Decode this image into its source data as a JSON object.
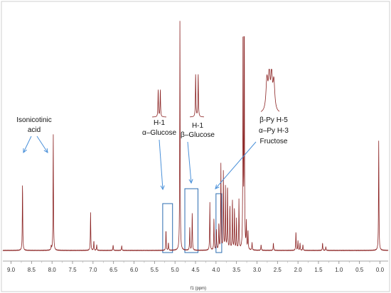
{
  "chart_data": {
    "type": "line",
    "title": "",
    "xlabel": "f1 (ppm)",
    "ylabel": "",
    "xlim": [
      9.2,
      -0.2
    ],
    "x_reversed": true,
    "grid": false,
    "x_ticks": [
      "9.0",
      "8.5",
      "8.0",
      "7.5",
      "7.0",
      "6.5",
      "6.0",
      "5.5",
      "5.0",
      "4.5",
      "4.0",
      "3.5",
      "3.0",
      "2.5",
      "2.0",
      "1.5",
      "1.0",
      "0.5",
      "0.0"
    ],
    "colors": {
      "spectrum": "#8b2323",
      "callout_arrow": "#4a90d9",
      "region_box": "#2b6cb0"
    },
    "peaks": [
      {
        "ppm": 8.72,
        "height": 0.36
      },
      {
        "ppm": 7.97,
        "height": 0.61
      },
      {
        "ppm": 8.02,
        "height": 0.02
      },
      {
        "ppm": 7.06,
        "height": 0.2
      },
      {
        "ppm": 6.98,
        "height": 0.05
      },
      {
        "ppm": 6.91,
        "height": 0.03
      },
      {
        "ppm": 6.51,
        "height": 0.03
      },
      {
        "ppm": 6.3,
        "height": 0.025
      },
      {
        "ppm": 5.22,
        "height": 0.11
      },
      {
        "ppm": 5.16,
        "height": 0.04
      },
      {
        "ppm": 4.88,
        "height": 1.2
      },
      {
        "ppm": 4.64,
        "height": 0.12
      },
      {
        "ppm": 4.58,
        "height": 0.2
      },
      {
        "ppm": 4.15,
        "height": 0.25
      },
      {
        "ppm": 4.05,
        "height": 0.17
      },
      {
        "ppm": 3.99,
        "height": 0.11
      },
      {
        "ppm": 3.93,
        "height": 0.14
      },
      {
        "ppm": 3.88,
        "height": 0.45
      },
      {
        "ppm": 3.82,
        "height": 0.41
      },
      {
        "ppm": 3.77,
        "height": 0.33
      },
      {
        "ppm": 3.72,
        "height": 0.35
      },
      {
        "ppm": 3.66,
        "height": 0.24
      },
      {
        "ppm": 3.6,
        "height": 0.27
      },
      {
        "ppm": 3.55,
        "height": 0.22
      },
      {
        "ppm": 3.5,
        "height": 0.16
      },
      {
        "ppm": 3.44,
        "height": 0.26
      },
      {
        "ppm": 3.34,
        "height": 1.2
      },
      {
        "ppm": 3.31,
        "height": 1.2
      },
      {
        "ppm": 3.26,
        "height": 0.14
      },
      {
        "ppm": 3.22,
        "height": 0.1
      },
      {
        "ppm": 3.12,
        "height": 0.04
      },
      {
        "ppm": 2.9,
        "height": 0.03
      },
      {
        "ppm": 2.6,
        "height": 0.04
      },
      {
        "ppm": 2.05,
        "height": 0.1
      },
      {
        "ppm": 2.0,
        "height": 0.05
      },
      {
        "ppm": 1.95,
        "height": 0.04
      },
      {
        "ppm": 1.88,
        "height": 0.03
      },
      {
        "ppm": 1.4,
        "height": 0.04
      },
      {
        "ppm": 1.32,
        "height": 0.02
      },
      {
        "ppm": 0.03,
        "height": 0.58
      }
    ],
    "annotations": [
      {
        "id": "isonicotinic",
        "lines": [
          "Isonicotinic",
          "acid"
        ]
      },
      {
        "id": "alpha-glucose",
        "lines": [
          "H-1",
          "α–Glucose"
        ]
      },
      {
        "id": "beta-glucose",
        "lines": [
          "H-1",
          "β–Glucose"
        ]
      },
      {
        "id": "fructose",
        "lines": [
          "β-Py H-5",
          "α–Py H-3",
          "Fructose"
        ]
      }
    ],
    "highlight_regions": [
      {
        "id": "alpha-glucose-region",
        "ppm": [
          5.3,
          5.06
        ]
      },
      {
        "id": "beta-glucose-region",
        "ppm": [
          4.76,
          4.44
        ]
      },
      {
        "id": "fructose-region",
        "ppm": [
          4.0,
          3.86
        ]
      }
    ]
  }
}
